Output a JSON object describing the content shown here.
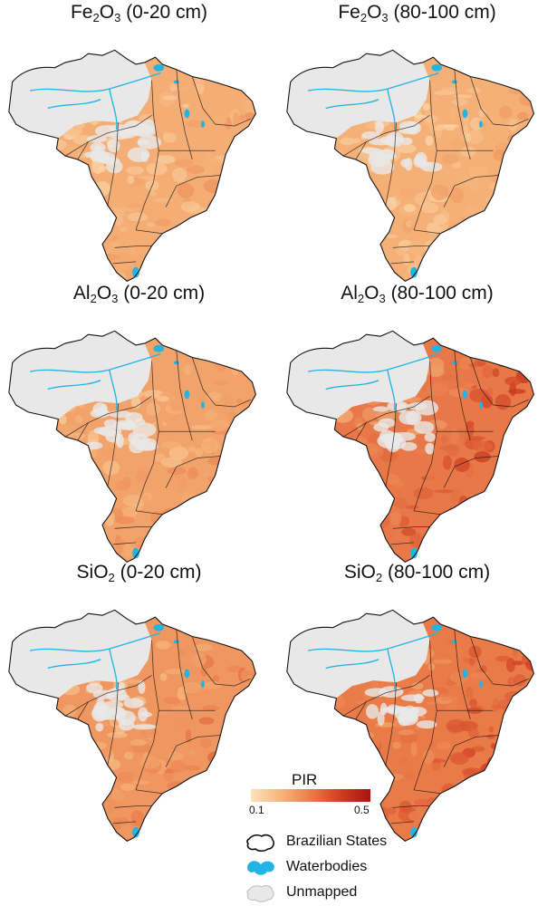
{
  "panels": [
    {
      "oxide_base": "Fe",
      "oxide_sub1": "2",
      "oxide_mid": "O",
      "oxide_sub2": "3",
      "depth": "(0-20 cm)",
      "intensity": 0.3
    },
    {
      "oxide_base": "Fe",
      "oxide_sub1": "2",
      "oxide_mid": "O",
      "oxide_sub2": "3",
      "depth": "(80-100 cm)",
      "intensity": 0.28
    },
    {
      "oxide_base": "Al",
      "oxide_sub1": "2",
      "oxide_mid": "O",
      "oxide_sub2": "3",
      "depth": "(0-20 cm)",
      "intensity": 0.38
    },
    {
      "oxide_base": "Al",
      "oxide_sub1": "2",
      "oxide_mid": "O",
      "oxide_sub2": "3",
      "depth": "(80-100 cm)",
      "intensity": 0.72
    },
    {
      "oxide_base": "SiO",
      "oxide_sub1": "2",
      "oxide_mid": "",
      "oxide_sub2": "",
      "depth": "(0-20 cm)",
      "intensity": 0.48
    },
    {
      "oxide_base": "SiO",
      "oxide_sub1": "2",
      "oxide_mid": "",
      "oxide_sub2": "",
      "depth": "(80-100 cm)",
      "intensity": 0.7
    }
  ],
  "legend": {
    "title": "PIR",
    "min_label": "0.1",
    "max_label": "0.5",
    "colors": [
      "#fde3bd",
      "#f6b57c",
      "#ea7c4a",
      "#cf3d22",
      "#a8150f"
    ]
  },
  "key": {
    "states_label": "Brazilian States",
    "water_label": "Waterbodies",
    "unmapped_label": "Unmapped",
    "states_color": "#111111",
    "water_color": "#22b5e3",
    "unmapped_color": "#e8e8e8"
  }
}
